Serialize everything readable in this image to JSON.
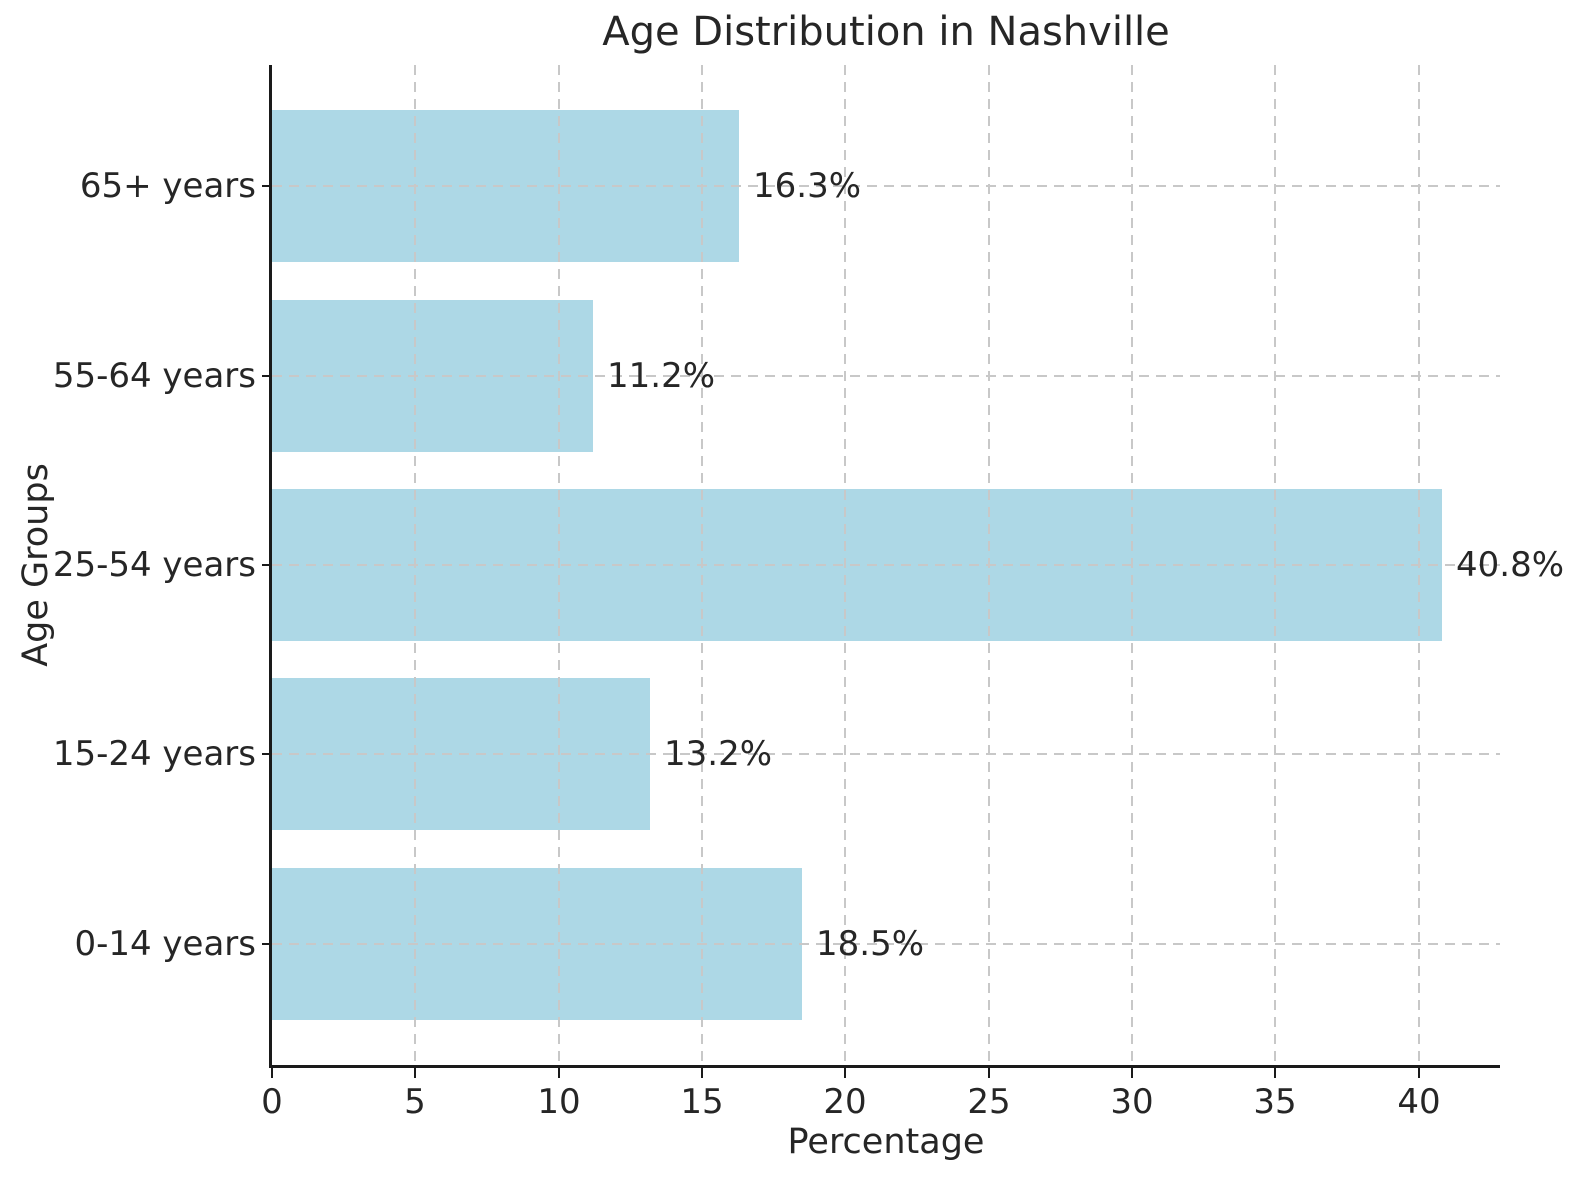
{
  "chart_data": {
    "type": "bar",
    "orientation": "horizontal",
    "title": "Age Distribution in Nashville",
    "xlabel": "Percentage",
    "ylabel": "Age Groups",
    "categories": [
      "65+ years",
      "55-64 years",
      "25-54 years",
      "15-24 years",
      "0-14 years"
    ],
    "values": [
      16.3,
      11.2,
      40.8,
      13.2,
      18.5
    ],
    "value_labels": [
      "16.3%",
      "11.2%",
      "40.8%",
      "13.2%",
      "18.5%"
    ],
    "x_ticks": [
      "0",
      "5",
      "10",
      "15",
      "20",
      "25",
      "30",
      "35",
      "40"
    ],
    "x_tick_values": [
      0,
      5,
      10,
      15,
      20,
      25,
      30,
      35,
      40
    ],
    "xlim": [
      0,
      42.84
    ],
    "bar_color": "#add8e6",
    "grid": true,
    "grid_style": "dashed",
    "grid_color": "#c8c8c8",
    "legend": "none",
    "text_color": "#262626",
    "axis_color": "#1a1a1a"
  }
}
